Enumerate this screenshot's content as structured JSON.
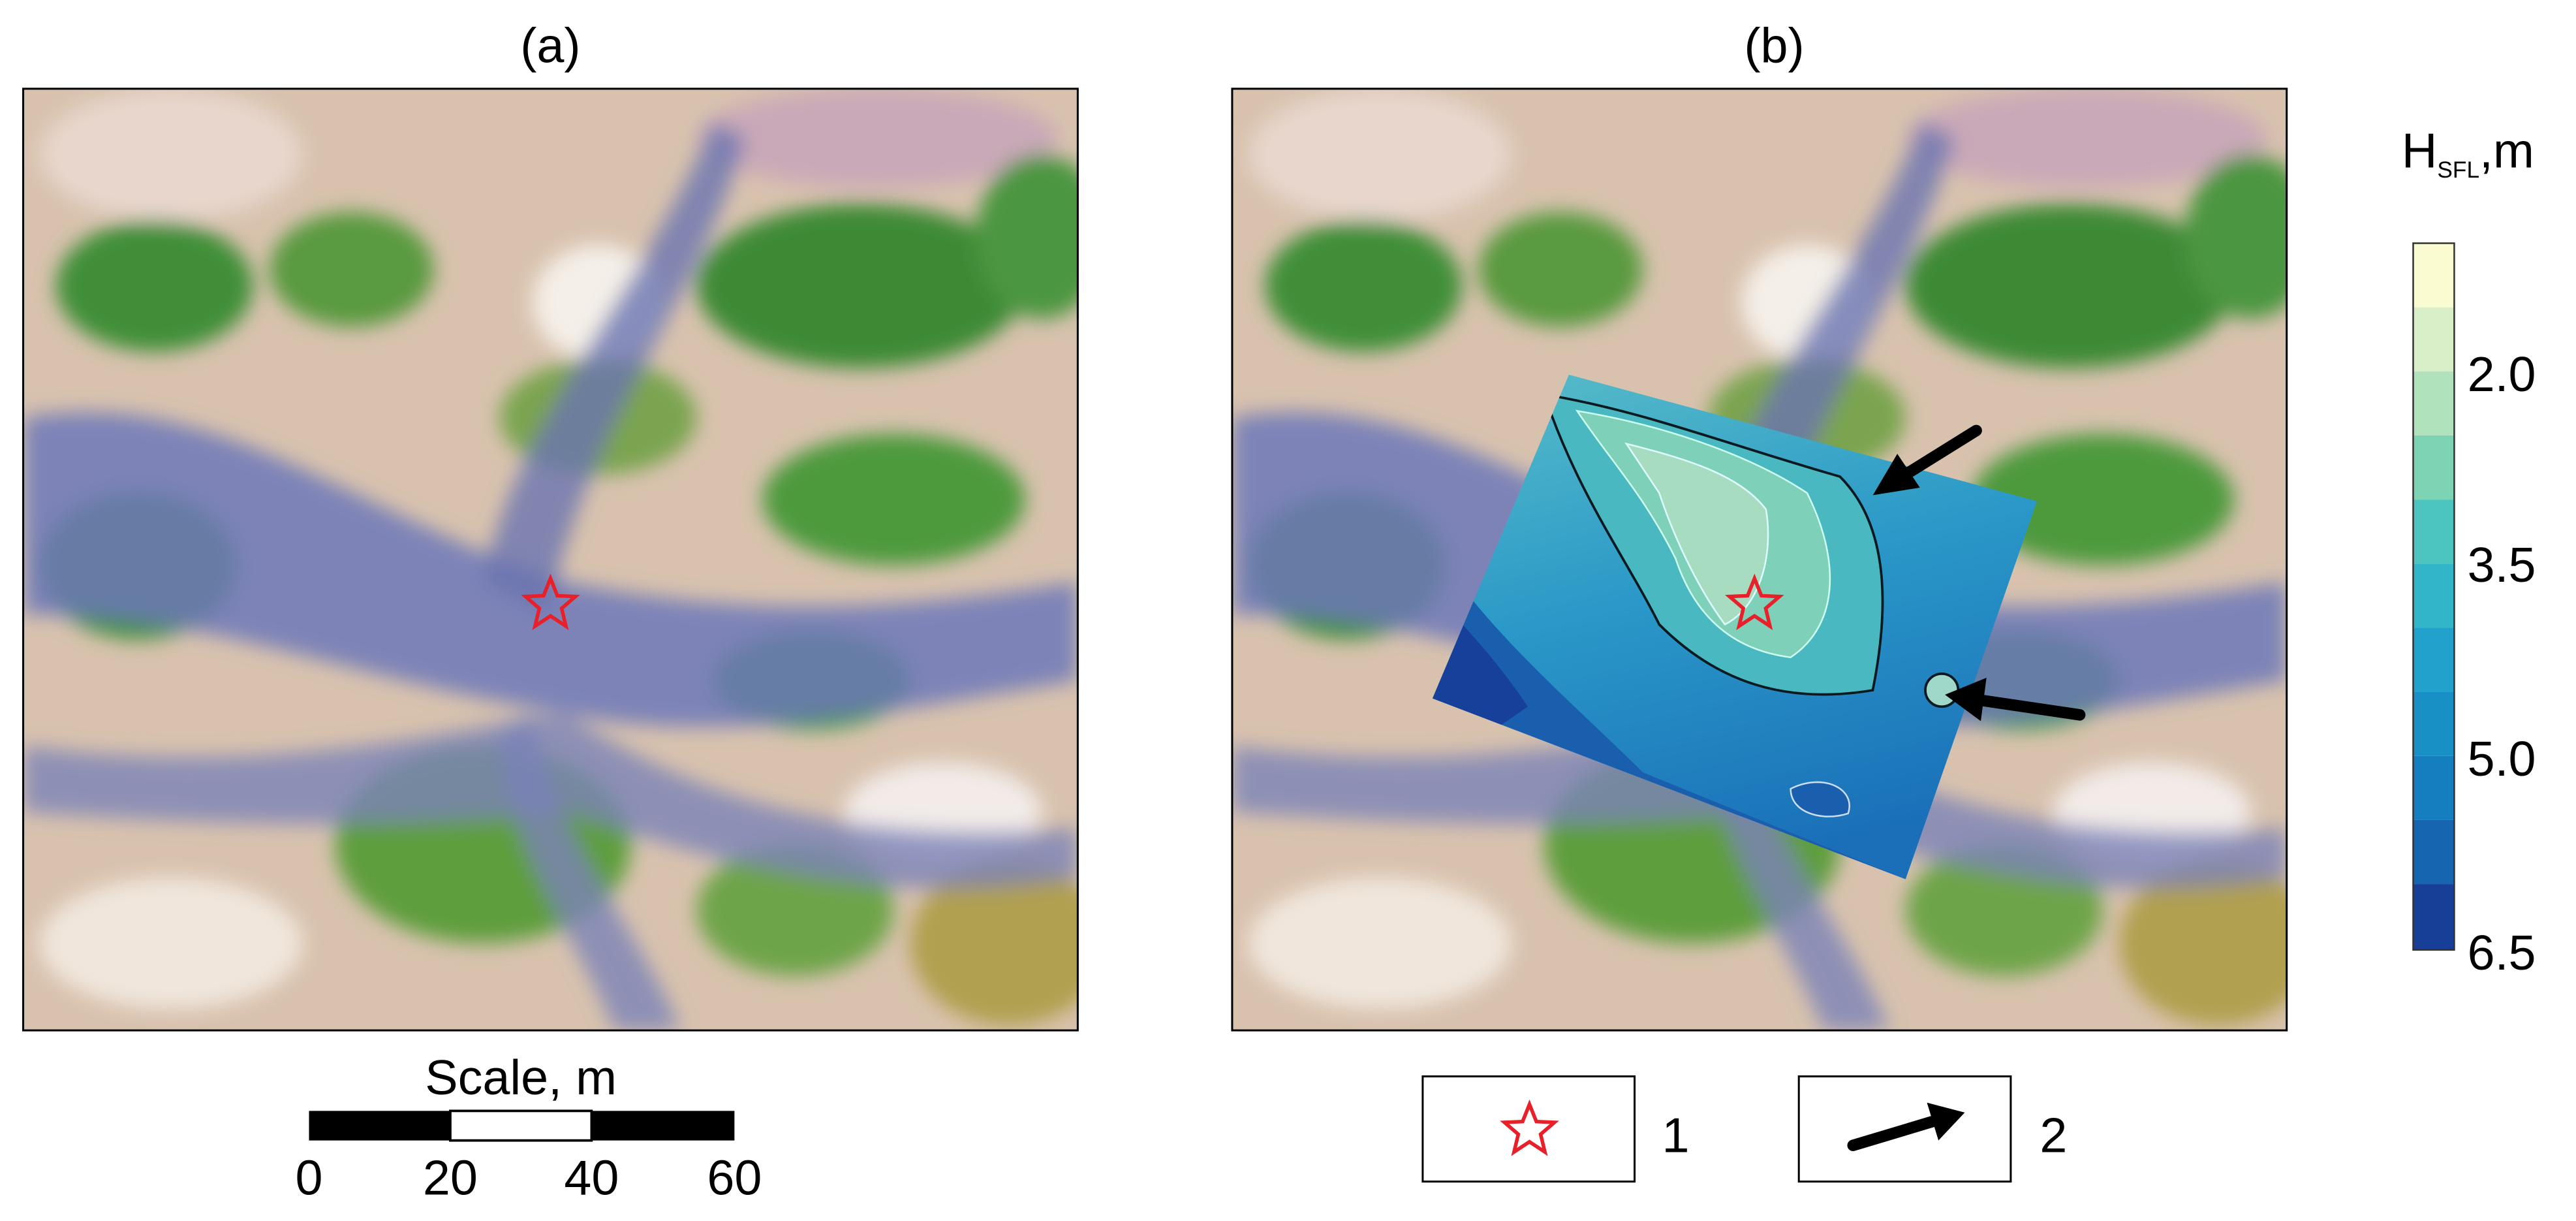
{
  "panels": [
    {
      "label": "(a)"
    },
    {
      "label": "(b)"
    }
  ],
  "scale_bar": {
    "title": "Scale, m",
    "ticks": [
      "0",
      "20",
      "40",
      "60"
    ]
  },
  "colorbar": {
    "title": "H",
    "title_sub": "SFL",
    "title_unit": ",m",
    "ticks": [
      "2.0",
      "3.5",
      "5.0",
      "6.5"
    ]
  },
  "legend": [
    {
      "label": "1"
    },
    {
      "label": "2"
    }
  ]
}
